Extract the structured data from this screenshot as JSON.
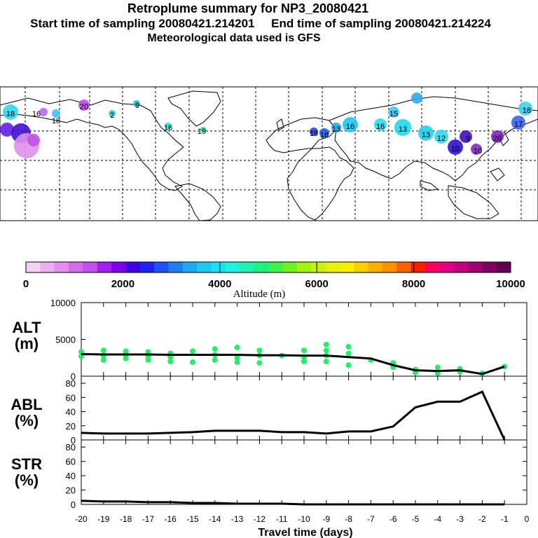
{
  "header": {
    "title": "Retroplume summary for NP3_20080421",
    "sampling": "Start time of sampling 20080421.214201     End time of sampling 20080421.214224",
    "met": "Meteorological data used is GFS"
  },
  "map": {
    "lon_range": [
      -180,
      180
    ],
    "lat_range": [
      -60,
      90
    ],
    "labels": [
      "18",
      "16",
      "18",
      "20",
      "19",
      "18",
      "13",
      "16",
      "16",
      "15",
      "13",
      "13",
      "12",
      "10",
      "9",
      "10",
      "20",
      "17",
      "18",
      "16",
      "19",
      "2",
      "9"
    ]
  },
  "colorbar": {
    "ticks": [
      "0",
      "2000",
      "4000",
      "6000",
      "8000",
      "10000"
    ],
    "title": "Altitude (m)",
    "colors": [
      "#f5d0f5",
      "#eab0f0",
      "#e090ea",
      "#d070e8",
      "#c050e8",
      "#a020f0",
      "#8000f0",
      "#4000e8",
      "#2020f0",
      "#2050f0",
      "#2080f0",
      "#20a8f0",
      "#20c8f0",
      "#20e0f0",
      "#20f0e0",
      "#20f0b0",
      "#20f080",
      "#40f050",
      "#70f020",
      "#a0f010",
      "#c8f010",
      "#e8f010",
      "#f8f000",
      "#f8d000",
      "#f8b000",
      "#f89000",
      "#f86000",
      "#f82000",
      "#f80060",
      "#e00080",
      "#c00080",
      "#a00070",
      "#800060",
      "#600050"
    ]
  },
  "chart_data": [
    {
      "type": "line",
      "name": "ALT",
      "ylabel": "ALT\n(m)",
      "ylim": [
        0,
        10000
      ],
      "yticks": [
        "10000",
        "5000",
        "0"
      ],
      "x": [
        -20,
        -19,
        -18,
        -17,
        -16,
        -15,
        -14,
        -13,
        -12,
        -11,
        -10,
        -9,
        -8,
        -7,
        -6,
        -5,
        -4,
        -3,
        -2,
        -1
      ],
      "values": [
        3000,
        2950,
        2950,
        2950,
        2900,
        2900,
        2900,
        2900,
        2850,
        2850,
        2800,
        2800,
        2600,
        2400,
        1500,
        800,
        700,
        800,
        300,
        1300
      ],
      "scatter": [
        [
          -20,
          3300
        ],
        [
          -20,
          2700
        ],
        [
          -19,
          3500
        ],
        [
          -19,
          2800
        ],
        [
          -19,
          2200
        ],
        [
          -18,
          3400
        ],
        [
          -18,
          2900
        ],
        [
          -18,
          2400
        ],
        [
          -17,
          3300
        ],
        [
          -17,
          2700
        ],
        [
          -17,
          2200
        ],
        [
          -16,
          3100
        ],
        [
          -16,
          2600
        ],
        [
          -16,
          2000
        ],
        [
          -15,
          3400
        ],
        [
          -15,
          1900
        ],
        [
          -14,
          3700
        ],
        [
          -14,
          2900
        ],
        [
          -14,
          2200
        ],
        [
          -13,
          3900
        ],
        [
          -13,
          2500
        ],
        [
          -13,
          1900
        ],
        [
          -12,
          3500
        ],
        [
          -12,
          2800
        ],
        [
          -12,
          1800
        ],
        [
          -11,
          2800
        ],
        [
          -10,
          3500
        ],
        [
          -10,
          2600
        ],
        [
          -10,
          2000
        ],
        [
          -9,
          4300
        ],
        [
          -9,
          3500
        ],
        [
          -9,
          2800
        ],
        [
          -9,
          2000
        ],
        [
          -8,
          4000
        ],
        [
          -8,
          3100
        ],
        [
          -8,
          1500
        ],
        [
          -7,
          2200
        ],
        [
          -6,
          1800
        ],
        [
          -6,
          1200
        ],
        [
          -5,
          900
        ],
        [
          -5,
          500
        ],
        [
          -4,
          1200
        ],
        [
          -4,
          400
        ],
        [
          -3,
          1000
        ],
        [
          -3,
          600
        ],
        [
          -2,
          400
        ],
        [
          -1,
          1300
        ]
      ]
    },
    {
      "type": "line",
      "name": "ABL",
      "ylabel": "ABL\n(%)",
      "ylim": [
        0,
        90
      ],
      "yticks": [
        "80",
        "60",
        "40",
        "20",
        "0"
      ],
      "x": [
        -20,
        -19,
        -18,
        -17,
        -16,
        -15,
        -14,
        -13,
        -12,
        -11,
        -10,
        -9,
        -8,
        -7,
        -6,
        -5,
        -4,
        -3,
        -2,
        -1
      ],
      "values": [
        10,
        9,
        9,
        9,
        10,
        11,
        13,
        13,
        13,
        11,
        11,
        9,
        12,
        12,
        19,
        46,
        54,
        54,
        68,
        0
      ]
    },
    {
      "type": "line",
      "name": "STR",
      "ylabel": "STR\n(%)",
      "ylim": [
        0,
        90
      ],
      "yticks": [
        "80",
        "60",
        "40",
        "20",
        "0"
      ],
      "x": [
        -20,
        -19,
        -18,
        -17,
        -16,
        -15,
        -14,
        -13,
        -12,
        -11,
        -10,
        -9,
        -8,
        -7,
        -6,
        -5,
        -4,
        -3,
        -2,
        -1
      ],
      "values": [
        5,
        4,
        4,
        3,
        3,
        2,
        2,
        1,
        1,
        1,
        0,
        0,
        0,
        0,
        0,
        0,
        0,
        0,
        0,
        0
      ]
    }
  ],
  "xaxis": {
    "ticks": [
      "-20",
      "-19",
      "-18",
      "-17",
      "-16",
      "-15",
      "-14",
      "-13",
      "-12",
      "-11",
      "-10",
      "-9",
      "-8",
      "-7",
      "-6",
      "-5",
      "-4",
      "-3",
      "-2",
      "-1",
      "0"
    ],
    "title": "Travel time (days)"
  },
  "colors": {
    "line": "#000000",
    "scatter": "#22ee66"
  }
}
